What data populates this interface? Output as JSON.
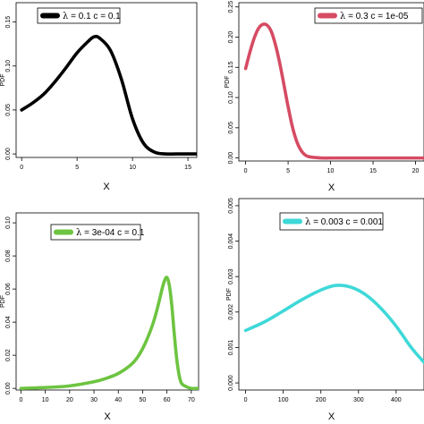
{
  "chart_data": [
    {
      "type": "line",
      "xlabel": "X",
      "ylabel": "PDF",
      "xlim": [
        -0.5,
        15.8
      ],
      "ylim": [
        -0.004,
        0.172
      ],
      "xticks": [
        "0",
        "5",
        "10",
        "15"
      ],
      "yticks": [
        "0.00",
        "0.05",
        "0.10",
        "0.15"
      ],
      "legend_placement": "top-left",
      "series": [
        {
          "name": "λ = 0.1  c = 0.1",
          "color": "#000000",
          "x": [
            0,
            1,
            2,
            3,
            4,
            5,
            6,
            6.5,
            7,
            8,
            9,
            10,
            11,
            12,
            13,
            14,
            15.8
          ],
          "y": [
            0.05,
            0.058,
            0.068,
            0.082,
            0.098,
            0.115,
            0.128,
            0.133,
            0.132,
            0.118,
            0.085,
            0.04,
            0.012,
            0.002,
            0.0,
            0.0,
            0.0
          ]
        }
      ]
    },
    {
      "type": "line",
      "xlabel": "X",
      "ylabel": "PDF",
      "xlim": [
        -0.8,
        21
      ],
      "ylim": [
        -0.005,
        0.257
      ],
      "xticks": [
        "0",
        "5",
        "10",
        "15",
        "20"
      ],
      "yticks": [
        "0.00",
        "0.05",
        "0.10",
        "0.15",
        "0.20",
        "0.25"
      ],
      "legend_placement": "top-right",
      "series": [
        {
          "name": "λ = 0.3  c = 1e-05",
          "color": "#d64b63",
          "x": [
            0,
            0.5,
            1,
            1.5,
            2,
            2.5,
            3,
            3.5,
            4,
            4.5,
            5,
            5.5,
            6,
            6.5,
            7,
            7.5,
            8,
            9,
            10,
            12,
            15,
            21
          ],
          "y": [
            0.148,
            0.175,
            0.198,
            0.214,
            0.221,
            0.22,
            0.21,
            0.188,
            0.158,
            0.122,
            0.085,
            0.052,
            0.028,
            0.013,
            0.005,
            0.002,
            0.001,
            0.0,
            0.0,
            0.0,
            0.0,
            0.0
          ]
        }
      ]
    },
    {
      "type": "line",
      "xlabel": "X",
      "ylabel": "PDF",
      "xlim": [
        -2,
        73
      ],
      "ylim": [
        -0.001,
        0.106
      ],
      "xticks": [
        "0",
        "10",
        "20",
        "30",
        "40",
        "50",
        "60",
        "70"
      ],
      "yticks": [
        "0.00",
        "0.02",
        "0.04",
        "0.06",
        "0.08",
        "0.10"
      ],
      "legend_placement": "top-left",
      "series": [
        {
          "name": "λ = 3e-04  c = 0.1",
          "color": "#6dc440",
          "x": [
            0,
            10,
            20,
            30,
            35,
            40,
            45,
            48,
            51,
            54,
            56,
            58,
            59,
            60,
            61,
            62,
            63,
            64,
            65,
            66,
            68,
            70,
            73
          ],
          "y": [
            0.0,
            0.0005,
            0.0015,
            0.004,
            0.006,
            0.009,
            0.014,
            0.019,
            0.027,
            0.038,
            0.048,
            0.06,
            0.065,
            0.067,
            0.062,
            0.05,
            0.033,
            0.018,
            0.008,
            0.003,
            0.001,
            0.0,
            0.0
          ]
        }
      ]
    },
    {
      "type": "line",
      "xlabel": "X",
      "ylabel": "PDF",
      "xlim": [
        -18,
        474
      ],
      "ylim": [
        -0.0002,
        0.0052
      ],
      "xticks": [
        "0",
        "100",
        "200",
        "300",
        "400"
      ],
      "yticks": [
        "0.000",
        "0.001",
        "0.002",
        "0.003",
        "0.004",
        "0.005"
      ],
      "legend_placement": "top",
      "series": [
        {
          "name": "λ = 0.003  c = 0.001",
          "color": "#3fd8d8",
          "x": [
            0,
            50,
            100,
            150,
            200,
            240,
            280,
            320,
            360,
            400,
            440,
            474
          ],
          "y": [
            0.00148,
            0.00172,
            0.00203,
            0.00235,
            0.00262,
            0.00275,
            0.0027,
            0.00248,
            0.0021,
            0.0016,
            0.001,
            0.00058
          ]
        }
      ]
    }
  ]
}
